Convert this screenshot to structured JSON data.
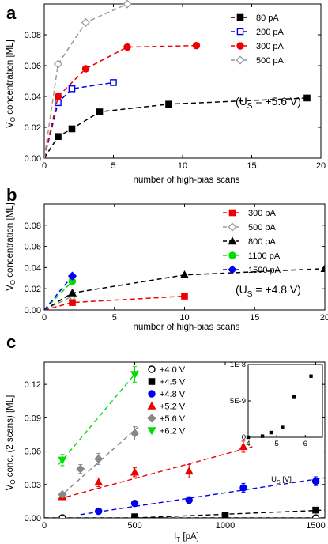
{
  "panels": [
    {
      "panel_label": "a",
      "annotation": "(U",
      "annotation_sub": "S",
      "annotation_rest": " = +5.6 V)",
      "xlabel": "number of high-bias scans",
      "ylabel": "V",
      "ylabel_sub": "O",
      "ylabel_rest": " concentration [ML]"
    },
    {
      "panel_label": "b",
      "annotation": "(U",
      "annotation_sub": "S",
      "annotation_rest": " = +4.8 V)",
      "xlabel": "number of high-bias scans",
      "ylabel": "V",
      "ylabel_sub": "O",
      "ylabel_rest": " concentration [ML]"
    },
    {
      "panel_label": "c",
      "xlabel": "I",
      "xlabel_sub": "T",
      "xlabel_rest": " [pA]",
      "ylabel": "V",
      "ylabel_sub": "O",
      "ylabel_rest": " conc. (2 scans) [ML]",
      "inset_xlabel": "U",
      "inset_xlabel_sub": "S",
      "inset_xlabel_rest": " [V]"
    }
  ],
  "chart_data": [
    {
      "type": "line",
      "panel": "a",
      "xlim": [
        0,
        20
      ],
      "ylim": [
        0,
        0.1
      ],
      "xticks": [
        "0",
        "5",
        "10",
        "15",
        "20"
      ],
      "yticks": [
        "0.00",
        "0.02",
        "0.04",
        "0.06",
        "0.08"
      ],
      "ytick_values": [
        0,
        0.02,
        0.04,
        0.06,
        0.08
      ],
      "xtick_values": [
        0,
        5,
        10,
        15,
        20
      ],
      "legend_placement": "top-right",
      "series": [
        {
          "name": "80 pA",
          "color": "#000000",
          "marker": "square-filled",
          "x": [
            0,
            1,
            2,
            4,
            9,
            19
          ],
          "y": [
            0.0,
            0.014,
            0.019,
            0.03,
            0.035,
            0.039
          ]
        },
        {
          "name": "200 pA",
          "color": "#0000ee",
          "marker": "square-open",
          "x": [
            0,
            1,
            2,
            5
          ],
          "y": [
            0.0,
            0.036,
            0.045,
            0.049
          ]
        },
        {
          "name": "300 pA",
          "color": "#ee0000",
          "marker": "circle-filled",
          "x": [
            0,
            1,
            3,
            6,
            11
          ],
          "y": [
            0.0,
            0.04,
            0.058,
            0.072,
            0.073
          ]
        },
        {
          "name": "500 pA",
          "color": "#999999",
          "marker": "diamond-open",
          "x": [
            0,
            1,
            3,
            6
          ],
          "y": [
            0.0,
            0.061,
            0.088,
            0.1
          ]
        }
      ]
    },
    {
      "type": "line",
      "panel": "b",
      "xlim": [
        0,
        20
      ],
      "ylim": [
        0,
        0.1
      ],
      "xticks": [
        "0",
        "5",
        "10",
        "15",
        "20"
      ],
      "yticks": [
        "0.00",
        "0.02",
        "0.04",
        "0.06",
        "0.08"
      ],
      "ytick_values": [
        0,
        0.02,
        0.04,
        0.06,
        0.08
      ],
      "xtick_values": [
        0,
        5,
        10,
        15,
        20
      ],
      "legend_placement": "top-right",
      "series": [
        {
          "name": "300 pA",
          "color": "#ee0000",
          "marker": "square-filled",
          "x": [
            0,
            2,
            10
          ],
          "y": [
            0.0,
            0.007,
            0.013
          ]
        },
        {
          "name": "500 pA",
          "color": "#999999",
          "marker": "diamond-open",
          "x": [
            0,
            2
          ],
          "y": [
            0.0,
            0.013
          ]
        },
        {
          "name": "800 pA",
          "color": "#000000",
          "marker": "triangle-filled",
          "x": [
            0,
            2,
            10,
            20
          ],
          "y": [
            0.0,
            0.016,
            0.033,
            0.039
          ]
        },
        {
          "name": "1100 pA",
          "color": "#00dd00",
          "marker": "circle-filled",
          "x": [
            0,
            2
          ],
          "y": [
            0.0,
            0.027
          ]
        },
        {
          "name": "1500 pA",
          "color": "#0000ee",
          "marker": "diamond-filled",
          "x": [
            0,
            2
          ],
          "y": [
            0.0,
            0.032
          ]
        }
      ]
    },
    {
      "type": "scatter",
      "panel": "c",
      "xlim": [
        0,
        1550
      ],
      "ylim": [
        0,
        0.14
      ],
      "xticks": [
        "0",
        "500",
        "1000",
        "1500"
      ],
      "xtick_values": [
        0,
        500,
        1000,
        1500
      ],
      "yticks": [
        "0.00",
        "0.03",
        "0.06",
        "0.09",
        "0.12"
      ],
      "ytick_values": [
        0,
        0.03,
        0.06,
        0.09,
        0.12
      ],
      "legend_placement": "top-left",
      "series": [
        {
          "name": "+4.0 V",
          "color": "#000000",
          "marker": "circle-open",
          "x": [
            100,
            500,
            1500
          ],
          "y": [
            0.0,
            0.0,
            0.0
          ],
          "err": [
            0,
            0,
            0
          ],
          "fit": [
            [
              0,
              0.0
            ],
            [
              1550,
              0.0
            ]
          ]
        },
        {
          "name": "+4.5 V",
          "color": "#000000",
          "marker": "square-filled",
          "x": [
            500,
            1000,
            1500
          ],
          "y": [
            0.001,
            0.002,
            0.007
          ],
          "err": [
            0,
            0,
            0
          ],
          "fit": [
            [
              500,
              0.0
            ],
            [
              1550,
              0.007
            ]
          ]
        },
        {
          "name": "+4.8 V",
          "color": "#0000ee",
          "marker": "circle-filled",
          "x": [
            300,
            500,
            800,
            1100,
            1500
          ],
          "y": [
            0.006,
            0.013,
            0.016,
            0.027,
            0.033
          ],
          "err": [
            0,
            0.002,
            0.003,
            0.004,
            0.004
          ],
          "fit": [
            [
              200,
              0.003
            ],
            [
              1550,
              0.036
            ]
          ]
        },
        {
          "name": "+5.2 V",
          "color": "#ee0000",
          "marker": "triangle-filled",
          "x": [
            100,
            300,
            500,
            800,
            1100
          ],
          "y": [
            0.019,
            0.032,
            0.041,
            0.042,
            0.064
          ],
          "err": [
            0.002,
            0.004,
            0.004,
            0.006,
            0.005
          ],
          "fit": [
            [
              80,
              0.017
            ],
            [
              1150,
              0.064
            ]
          ]
        },
        {
          "name": "+5.6 V",
          "color": "#888888",
          "marker": "diamond-filled",
          "x": [
            100,
            200,
            300,
            500
          ],
          "y": [
            0.021,
            0.044,
            0.053,
            0.076
          ],
          "err": [
            0.002,
            0.004,
            0.005,
            0.006
          ],
          "fit": [
            [
              80,
              0.018
            ],
            [
              520,
              0.082
            ]
          ]
        },
        {
          "name": "+6.2 V",
          "color": "#00dd00",
          "marker": "triangle-down-filled",
          "x": [
            100,
            500
          ],
          "y": [
            0.052,
            0.129
          ],
          "err": [
            0.005,
            0.007
          ],
          "fit": [
            [
              80,
              0.048
            ],
            [
              520,
              0.133
            ]
          ]
        }
      ],
      "inset": {
        "xlim": [
          4,
          6.6
        ],
        "ylim": [
          0,
          1e-08
        ],
        "xticks": [
          "4",
          "5",
          "6"
        ],
        "xtick_values": [
          4,
          5,
          6
        ],
        "yticks": [
          "0",
          "5E-9",
          "1E-8"
        ],
        "ytick_values": [
          0,
          5e-09,
          1e-08
        ],
        "x": [
          4.0,
          4.5,
          4.8,
          5.2,
          5.6,
          6.2
        ],
        "y": [
          0.0,
          1.5e-10,
          6.5e-10,
          1.35e-09,
          5.6e-09,
          8.4e-09
        ]
      }
    }
  ]
}
